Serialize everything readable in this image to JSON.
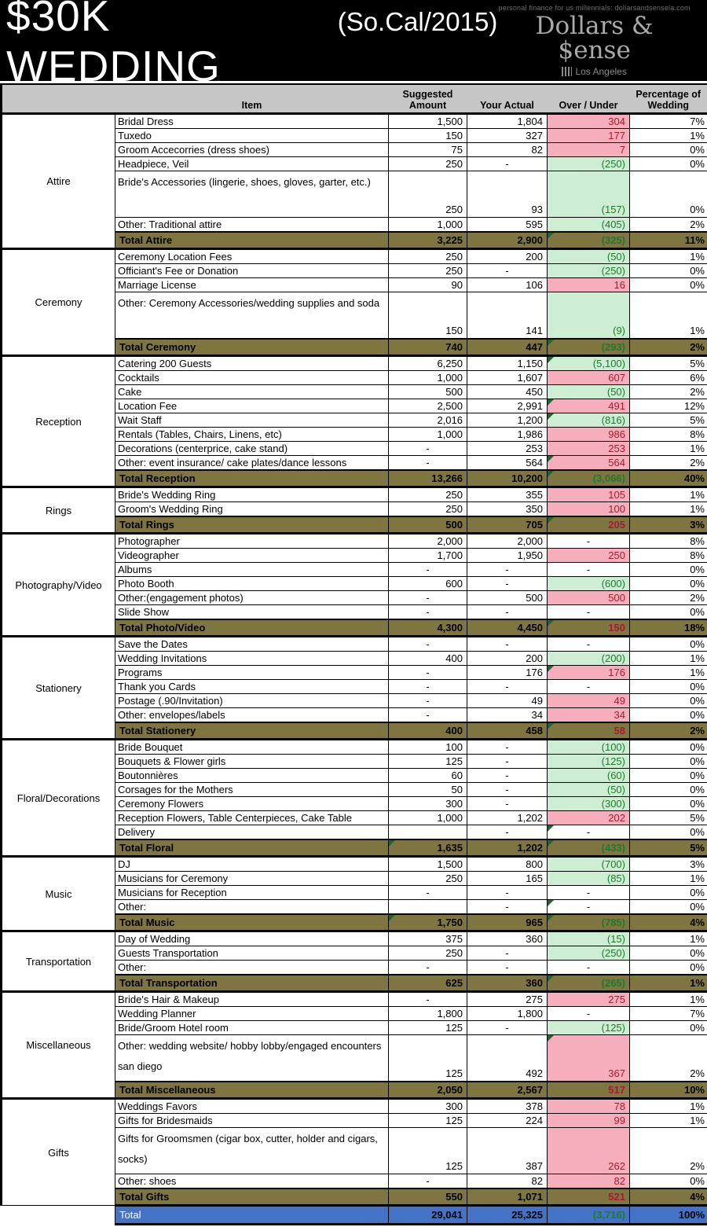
{
  "header": {
    "title": "$30K WEDDING",
    "subtitle": "(So.Cal/2015)",
    "logo_tagline": "personal finance for us millennials: dollarsandsensela.com",
    "logo_brand": "Dollars & $ense",
    "logo_city": "Los Angeles"
  },
  "colors": {
    "header_bg": "#000000",
    "table_header_bg": "#c6c6c6",
    "over_fill": "#f6aebc",
    "over_text": "#a81a2e",
    "under_fill": "#cdeed3",
    "under_text": "#1e7a2e",
    "section_total_bg": "#7e7540",
    "grand_total_bg": "#4472c4",
    "flag_triangle": "#1c672c"
  },
  "table": {
    "columns": {
      "item": "Item",
      "suggested": "Suggested Amount",
      "actual": "Your Actual",
      "over": "Over / Under",
      "pct": "Percentage of Wedding"
    },
    "sections": [
      {
        "category": "Attire",
        "rows": [
          {
            "item": "Bridal Dress",
            "suggested": "1,500",
            "actual": "1,804",
            "over": "304",
            "state": "over",
            "pct": "7%"
          },
          {
            "item": "Tuxedo",
            "suggested": "150",
            "actual": "327",
            "over": "177",
            "state": "over",
            "pct": "1%"
          },
          {
            "item": "Groom Accecorries (dress shoes)",
            "suggested": "75",
            "actual": "82",
            "over": "7",
            "state": "over",
            "pct": "0%"
          },
          {
            "item": "Headpiece, Veil",
            "suggested": "250",
            "actual": "-",
            "over": "(250)",
            "state": "under",
            "pct": "0%"
          },
          {
            "item": "Bride's Accessories (lingerie, shoes, gloves, garter, etc.)",
            "suggested": "250",
            "actual": "93",
            "over": "(157)",
            "state": "under",
            "pct": "0%",
            "tall": true
          },
          {
            "item": "Other:  Traditional attire",
            "suggested": "1,000",
            "actual": "595",
            "over": "(405)",
            "state": "under",
            "pct": "2%"
          }
        ],
        "total": {
          "label": "Total Attire",
          "suggested": "3,225",
          "actual": "2,900",
          "over": "(325)",
          "state": "under",
          "pct": "11%",
          "marks": [
            "over"
          ]
        }
      },
      {
        "category": "Ceremony",
        "rows": [
          {
            "item": "Ceremony Location Fees",
            "suggested": "250",
            "actual": "200",
            "over": "(50)",
            "state": "under",
            "pct": "1%"
          },
          {
            "item": "Officiant's Fee or Donation",
            "suggested": "250",
            "actual": "-",
            "over": "(250)",
            "state": "under",
            "pct": "0%"
          },
          {
            "item": "Marriage License",
            "suggested": "90",
            "actual": "106",
            "over": "16",
            "state": "over",
            "pct": "0%"
          },
          {
            "item": "Other: Ceremony Accessories/wedding supplies and soda",
            "suggested": "150",
            "actual": "141",
            "over": "(9)",
            "state": "under",
            "pct": "1%",
            "tall": true
          }
        ],
        "total": {
          "label": "Total Ceremony",
          "suggested": "740",
          "actual": "447",
          "over": "(293)",
          "state": "under",
          "pct": "2%",
          "marks": [
            "over"
          ]
        }
      },
      {
        "category": "Reception",
        "rows": [
          {
            "item": "Catering 200 Guests",
            "suggested": "6,250",
            "actual": "1,150",
            "over": "(5,100)",
            "state": "under",
            "pct": "5%",
            "marks": [
              "over"
            ]
          },
          {
            "item": "Cocktails",
            "suggested": "1,000",
            "actual": "1,607",
            "over": "607",
            "state": "over",
            "pct": "6%"
          },
          {
            "item": "Cake",
            "suggested": "500",
            "actual": "450",
            "over": "(50)",
            "state": "under",
            "pct": "2%"
          },
          {
            "item": "Location Fee",
            "suggested": "2,500",
            "actual": "2,991",
            "over": "491",
            "state": "over",
            "pct": "12%",
            "marks": [
              "over"
            ]
          },
          {
            "item": "Wait Staff",
            "suggested": "2,016",
            "actual": "1,200",
            "over": "(816)",
            "state": "under",
            "pct": "5%",
            "marks": [
              "over"
            ]
          },
          {
            "item": "Rentals (Tables, Chairs, Linens, etc)",
            "suggested": "1,000",
            "actual": "1,986",
            "over": "986",
            "state": "over",
            "pct": "8%"
          },
          {
            "item": "Decorations (centerprice, cake stand)",
            "suggested": "-",
            "actual": "253",
            "over": "253",
            "state": "over",
            "pct": "1%"
          },
          {
            "item": "Other: event insurance/ cake plates/dance lessons",
            "suggested": "-",
            "actual": "564",
            "over": "564",
            "state": "over",
            "pct": "2%",
            "marks": [
              "over"
            ]
          }
        ],
        "total": {
          "label": "Total Reception",
          "suggested": "13,266",
          "actual": "10,200",
          "over": "(3,066)",
          "state": "under",
          "pct": "40%",
          "marks": [
            "over"
          ]
        }
      },
      {
        "category": "Rings",
        "rows": [
          {
            "item": "Bride's Wedding Ring",
            "suggested": "250",
            "actual": "355",
            "over": "105",
            "state": "over",
            "pct": "1%"
          },
          {
            "item": "Groom's Wedding Ring",
            "suggested": "250",
            "actual": "350",
            "over": "100",
            "state": "over",
            "pct": "1%"
          }
        ],
        "total": {
          "label": "Total Rings",
          "suggested": "500",
          "actual": "705",
          "over": "205",
          "state": "over",
          "pct": "3%",
          "marks": [
            "over"
          ]
        }
      },
      {
        "category": "Photography/Video",
        "rows": [
          {
            "item": "Photographer",
            "suggested": "2,000",
            "actual": "2,000",
            "over": "-",
            "state": "none",
            "pct": "8%"
          },
          {
            "item": "Videographer",
            "suggested": "1,700",
            "actual": "1,950",
            "over": "250",
            "state": "over",
            "pct": "8%"
          },
          {
            "item": "Albums",
            "suggested": "-",
            "actual": "-",
            "over": "-",
            "state": "none",
            "pct": "0%"
          },
          {
            "item": "Photo Booth",
            "suggested": "600",
            "actual": "-",
            "over": "(600)",
            "state": "under",
            "pct": "0%"
          },
          {
            "item": "Other:(engagement photos)",
            "suggested": "-",
            "actual": "500",
            "over": "500",
            "state": "over",
            "pct": "2%"
          },
          {
            "item": "Slide Show",
            "suggested": "-",
            "actual": "-",
            "over": "-",
            "state": "none",
            "pct": "0%"
          }
        ],
        "total": {
          "label": "Total Photo/Video",
          "suggested": "4,300",
          "actual": "4,450",
          "over": "150",
          "state": "over",
          "pct": "18%",
          "marks": [
            "over"
          ]
        }
      },
      {
        "category": "Stationery",
        "rows": [
          {
            "item": "Save the Dates",
            "suggested": "-",
            "actual": "-",
            "over": "-",
            "state": "none",
            "pct": "0%"
          },
          {
            "item": "Wedding Invitations",
            "suggested": "400",
            "actual": "200",
            "over": "(200)",
            "state": "under",
            "pct": "1%"
          },
          {
            "item": "Programs",
            "suggested": "-",
            "actual": "176",
            "over": "176",
            "state": "over",
            "pct": "1%",
            "marks": [
              "over"
            ]
          },
          {
            "item": "Thank you Cards",
            "suggested": "-",
            "actual": "-",
            "over": "-",
            "state": "none",
            "pct": "0%"
          },
          {
            "item": "Postage (.90/Invitation)",
            "suggested": "-",
            "actual": "49",
            "over": "49",
            "state": "over",
            "pct": "0%"
          },
          {
            "item": "Other: envelopes/labels",
            "suggested": "-",
            "actual": "34",
            "over": "34",
            "state": "over",
            "pct": "0%"
          }
        ],
        "total": {
          "label": "Total Stationery",
          "suggested": "400",
          "actual": "458",
          "over": "58",
          "state": "over",
          "pct": "2%",
          "marks": [
            "over"
          ]
        }
      },
      {
        "category": "Floral/Decorations",
        "rows": [
          {
            "item": "Bride Bouquet",
            "suggested": "100",
            "actual": "-",
            "over": "(100)",
            "state": "under",
            "pct": "0%"
          },
          {
            "item": "Bouquets & Flower girls",
            "suggested": "125",
            "actual": "-",
            "over": "(125)",
            "state": "under",
            "pct": "0%"
          },
          {
            "item": "Boutonnières",
            "suggested": "60",
            "actual": "-",
            "over": "(60)",
            "state": "under",
            "pct": "0%"
          },
          {
            "item": "Corsages for the Mothers",
            "suggested": "50",
            "actual": "-",
            "over": "(50)",
            "state": "under",
            "pct": "0%"
          },
          {
            "item": "Ceremony Flowers",
            "suggested": "300",
            "actual": "-",
            "over": "(300)",
            "state": "under",
            "pct": "0%"
          },
          {
            "item": "Reception Flowers, Table Centerpieces, Cake Table",
            "suggested": "1,000",
            "actual": "1,202",
            "over": "202",
            "state": "over",
            "pct": "5%"
          },
          {
            "item": "Delivery",
            "suggested": "",
            "actual": "-",
            "over": "-",
            "state": "none",
            "pct": "0%",
            "marks": [
              "over"
            ]
          }
        ],
        "total": {
          "label": "Total Floral",
          "suggested": "1,635",
          "actual": "1,202",
          "over": "(433)",
          "state": "under",
          "pct": "5%",
          "marks": [
            "suggested",
            "over"
          ]
        }
      },
      {
        "category": "Music",
        "rows": [
          {
            "item": "DJ",
            "suggested": "1,500",
            "actual": "800",
            "over": "(700)",
            "state": "under",
            "pct": "3%"
          },
          {
            "item": "Musicians for Ceremony",
            "suggested": "250",
            "actual": "165",
            "over": "(85)",
            "state": "under",
            "pct": "1%"
          },
          {
            "item": "Musicians for Reception",
            "suggested": "-",
            "actual": "-",
            "over": "-",
            "state": "none",
            "pct": "0%"
          },
          {
            "item": "Other:",
            "suggested": "",
            "actual": "-",
            "over": "-",
            "state": "none",
            "pct": "0%",
            "marks": [
              "over"
            ]
          }
        ],
        "total": {
          "label": "Total Music",
          "suggested": "1,750",
          "actual": "965",
          "over": "(785)",
          "state": "under",
          "pct": "4%",
          "marks": [
            "suggested",
            "over"
          ]
        }
      },
      {
        "category": "Transportation",
        "rows": [
          {
            "item": "Day of Wedding",
            "suggested": "375",
            "actual": "360",
            "over": "(15)",
            "state": "under",
            "pct": "1%"
          },
          {
            "item": "Guests Transportation",
            "suggested": "250",
            "actual": "-",
            "over": "(250)",
            "state": "under",
            "pct": "0%"
          },
          {
            "item": "Other:",
            "suggested": "-",
            "actual": "-",
            "over": "-",
            "state": "none",
            "pct": "0%"
          }
        ],
        "total": {
          "label": "Total Transportation",
          "suggested": "625",
          "actual": "360",
          "over": "(265)",
          "state": "under",
          "pct": "1%",
          "marks": [
            "over"
          ]
        }
      },
      {
        "category": "Miscellaneous",
        "rows": [
          {
            "item": "Bride's Hair & Makeup",
            "suggested": "-",
            "actual": "275",
            "over": "275",
            "state": "over",
            "pct": "1%"
          },
          {
            "item": "Wedding Planner",
            "suggested": "1,800",
            "actual": "1,800",
            "over": "-",
            "state": "none",
            "pct": "7%"
          },
          {
            "item": "Bride/Groom Hotel room",
            "suggested": "125",
            "actual": "-",
            "over": "(125)",
            "state": "under",
            "pct": "0%"
          },
          {
            "item": "Other: wedding website/ hobby lobby/engaged encounters san diego",
            "suggested": "125",
            "actual": "492",
            "over": "367",
            "state": "over",
            "pct": "2%",
            "tall": true,
            "marks": [
              "over"
            ]
          }
        ],
        "total": {
          "label": "Total Miscellaneous",
          "suggested": "2,050",
          "actual": "2,567",
          "over": "517",
          "state": "over",
          "pct": "10%"
        }
      },
      {
        "category": "Gifts",
        "rows": [
          {
            "item": "Weddings Favors",
            "suggested": "300",
            "actual": "378",
            "over": "78",
            "state": "over",
            "pct": "1%"
          },
          {
            "item": "Gifts for Bridesmaids",
            "suggested": "125",
            "actual": "224",
            "over": "99",
            "state": "over",
            "pct": "1%"
          },
          {
            "item": "Gifts for Groomsmen (cigar box, cutter, holder and cigars, socks)",
            "suggested": "125",
            "actual": "387",
            "over": "262",
            "state": "over",
            "pct": "2%",
            "tall": true
          },
          {
            "item": "Other: shoes",
            "suggested": "-",
            "actual": "82",
            "over": "82",
            "state": "over",
            "pct": "0%"
          }
        ],
        "total": {
          "label": "Total Gifts",
          "suggested": "550",
          "actual": "1,071",
          "over": "521",
          "state": "over",
          "pct": "4%"
        }
      }
    ],
    "grand_total": {
      "label": "Total",
      "suggested": "29,041",
      "actual": "25,325",
      "over": "(3,716)",
      "state": "under",
      "pct": "100%"
    }
  }
}
